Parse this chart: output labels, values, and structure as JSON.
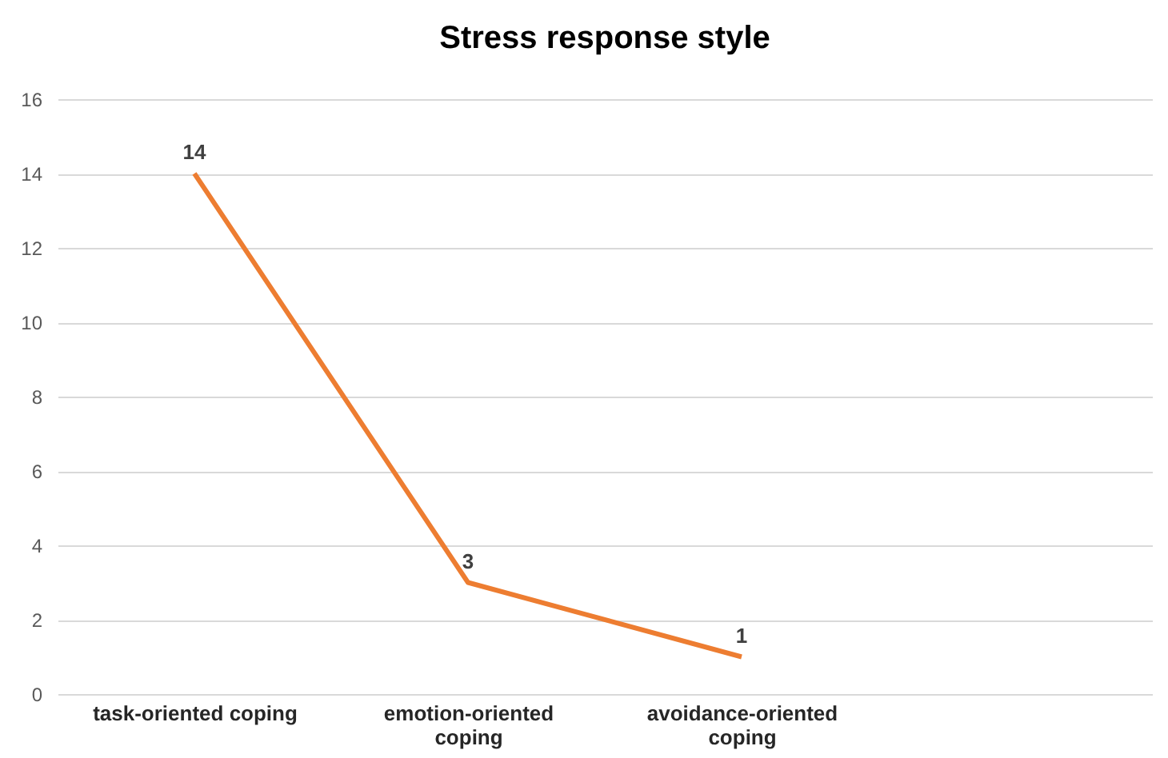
{
  "chart_data": {
    "type": "line",
    "title": "Stress response style",
    "categories": [
      "task-oriented coping",
      "emotion-oriented coping",
      "avoidance-oriented coping",
      null
    ],
    "series": [
      {
        "color": "#ed7d31",
        "values": [
          14,
          3,
          1,
          null
        ]
      }
    ],
    "ylim": [
      0,
      16
    ],
    "yticks": [
      0,
      2,
      4,
      6,
      8,
      10,
      12,
      14,
      16
    ],
    "grid": "y",
    "data_labels": true,
    "marker": "none",
    "line_style": "solid"
  }
}
